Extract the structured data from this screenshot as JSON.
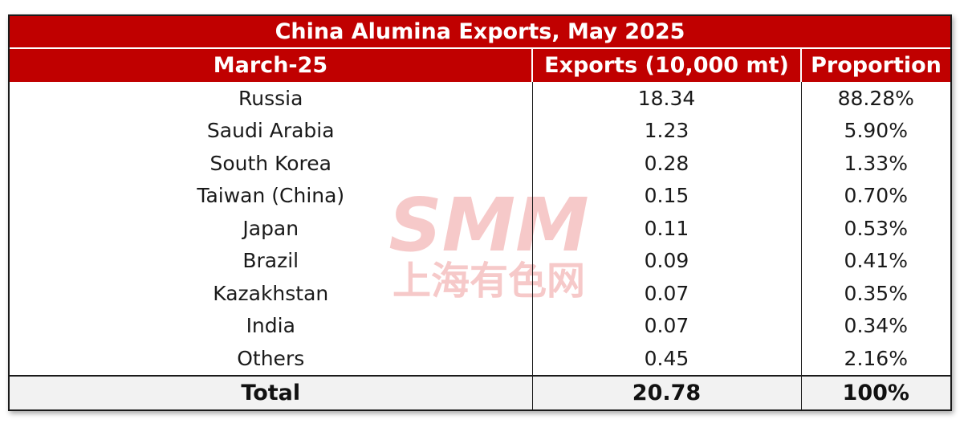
{
  "chart_data": {
    "type": "table",
    "title": "China Alumina Exports, May 2025",
    "columns": [
      "March-25",
      "Exports (10,000 mt)",
      "Proportion"
    ],
    "rows": [
      {
        "country": "Russia",
        "exports": "18.34",
        "proportion": "88.28%"
      },
      {
        "country": "Saudi Arabia",
        "exports": "1.23",
        "proportion": "5.90%"
      },
      {
        "country": "South Korea",
        "exports": "0.28",
        "proportion": "1.33%"
      },
      {
        "country": "Taiwan (China)",
        "exports": "0.15",
        "proportion": "0.70%"
      },
      {
        "country": "Japan",
        "exports": "0.11",
        "proportion": "0.53%"
      },
      {
        "country": "Brazil",
        "exports": "0.09",
        "proportion": "0.41%"
      },
      {
        "country": "Kazakhstan",
        "exports": "0.07",
        "proportion": "0.35%"
      },
      {
        "country": "India",
        "exports": "0.07",
        "proportion": "0.34%"
      },
      {
        "country": "Others",
        "exports": "0.45",
        "proportion": "2.16%"
      }
    ],
    "total": {
      "label": "Total",
      "exports": "20.78",
      "proportion": "100%"
    }
  },
  "colors": {
    "header_bg": "#c00000",
    "header_text": "#ffffff",
    "total_bg": "#f2f2f2",
    "watermark": "#f4b8b8"
  },
  "watermark": {
    "logo_text": "SMM",
    "cn_text": "上海有色网"
  }
}
